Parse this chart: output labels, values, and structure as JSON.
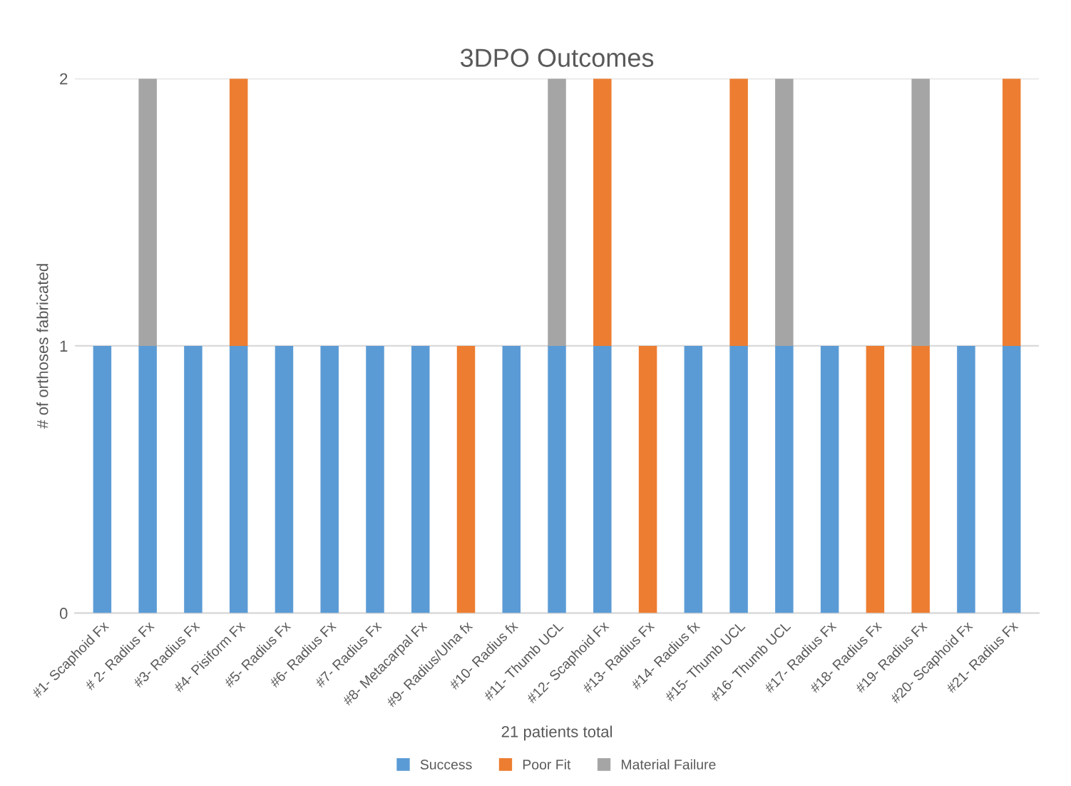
{
  "chart_data": {
    "type": "bar",
    "stacked": true,
    "title": "3DPO Outcomes",
    "xlabel": "21 patients total",
    "ylabel": "# of orthoses fabricated",
    "categories": [
      "#1- Scaphoid Fx",
      "# 2- Radius Fx",
      "#3- Radius Fx",
      "#4- Pisiform Fx",
      "#5- Radius Fx",
      "#6- Radius Fx",
      "#7- Radius Fx",
      "#8- Metacarpal Fx",
      "#9- Radius/Ulna fx",
      "#10- Radius fx",
      "#11- Thumb UCL",
      "#12- Scaphoid Fx",
      "#13- Radius Fx",
      "#14- Radius fx",
      "#15- Thumb UCL",
      "#16- Thumb UCL",
      "#17- Radius Fx",
      "#18- Radius Fx",
      "#19- Radius Fx",
      "#20- Scaphoid Fx",
      "#21- Radius Fx"
    ],
    "series": [
      {
        "name": "Success",
        "color": "#5b9bd5",
        "values": [
          1,
          1,
          1,
          1,
          1,
          1,
          1,
          1,
          0,
          1,
          1,
          1,
          0,
          1,
          1,
          1,
          1,
          0,
          0,
          1,
          1
        ]
      },
      {
        "name": "Poor Fit",
        "color": "#ed7d31",
        "values": [
          0,
          0,
          0,
          1,
          0,
          0,
          0,
          0,
          1,
          0,
          0,
          1,
          1,
          0,
          1,
          0,
          0,
          1,
          1,
          0,
          1
        ]
      },
      {
        "name": "Material Failure",
        "color": "#a5a5a5",
        "values": [
          0,
          1,
          0,
          0,
          0,
          0,
          0,
          0,
          0,
          0,
          1,
          0,
          0,
          0,
          0,
          1,
          0,
          0,
          1,
          0,
          0
        ]
      }
    ],
    "ylim": [
      0,
      2
    ],
    "yticks": [
      0,
      1,
      2
    ],
    "grid": "y",
    "legend": "bottom"
  }
}
